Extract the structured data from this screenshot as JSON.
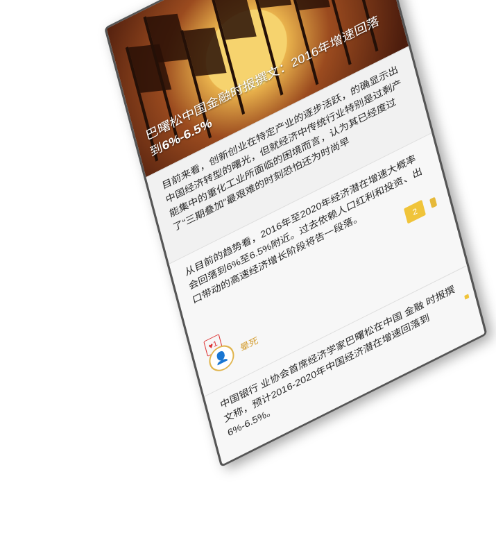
{
  "hero": {
    "title_part1": "巴曙松中国金融时报撰文：2016年增速回落到",
    "title_highlight": "6%-6.5%"
  },
  "cards": [
    {
      "text": "目前来看，创新创业在特定产业的逐步活跃，的确显示出中国经济转型的曙光，但就经济中传统行业特别是过剩产能集中的重化工业所面临的困境而言，认为其已经度过了“三期叠加”最艰难的时刻恐怕还为时尚早"
    },
    {
      "text": "从目前的趋势看，2016年至2020年经济潜在增速大概率会回落到6%至6.5%附近。过去依赖人口红利和投资、出口带动的高速经济增长阶段将告一段落。",
      "reply_count": "2",
      "like_label": "♥1",
      "author_name": "晕死"
    },
    {
      "text": "中国银行 业协会首席经济学家巴曙松在中国 金融 时报撰文称，预计2016-2020年中国经济潜在增速回落到6%-6.5%。"
    }
  ],
  "colors": {
    "accent": "#f0c43a",
    "author": "#d39b2c",
    "like": "#d33333"
  }
}
